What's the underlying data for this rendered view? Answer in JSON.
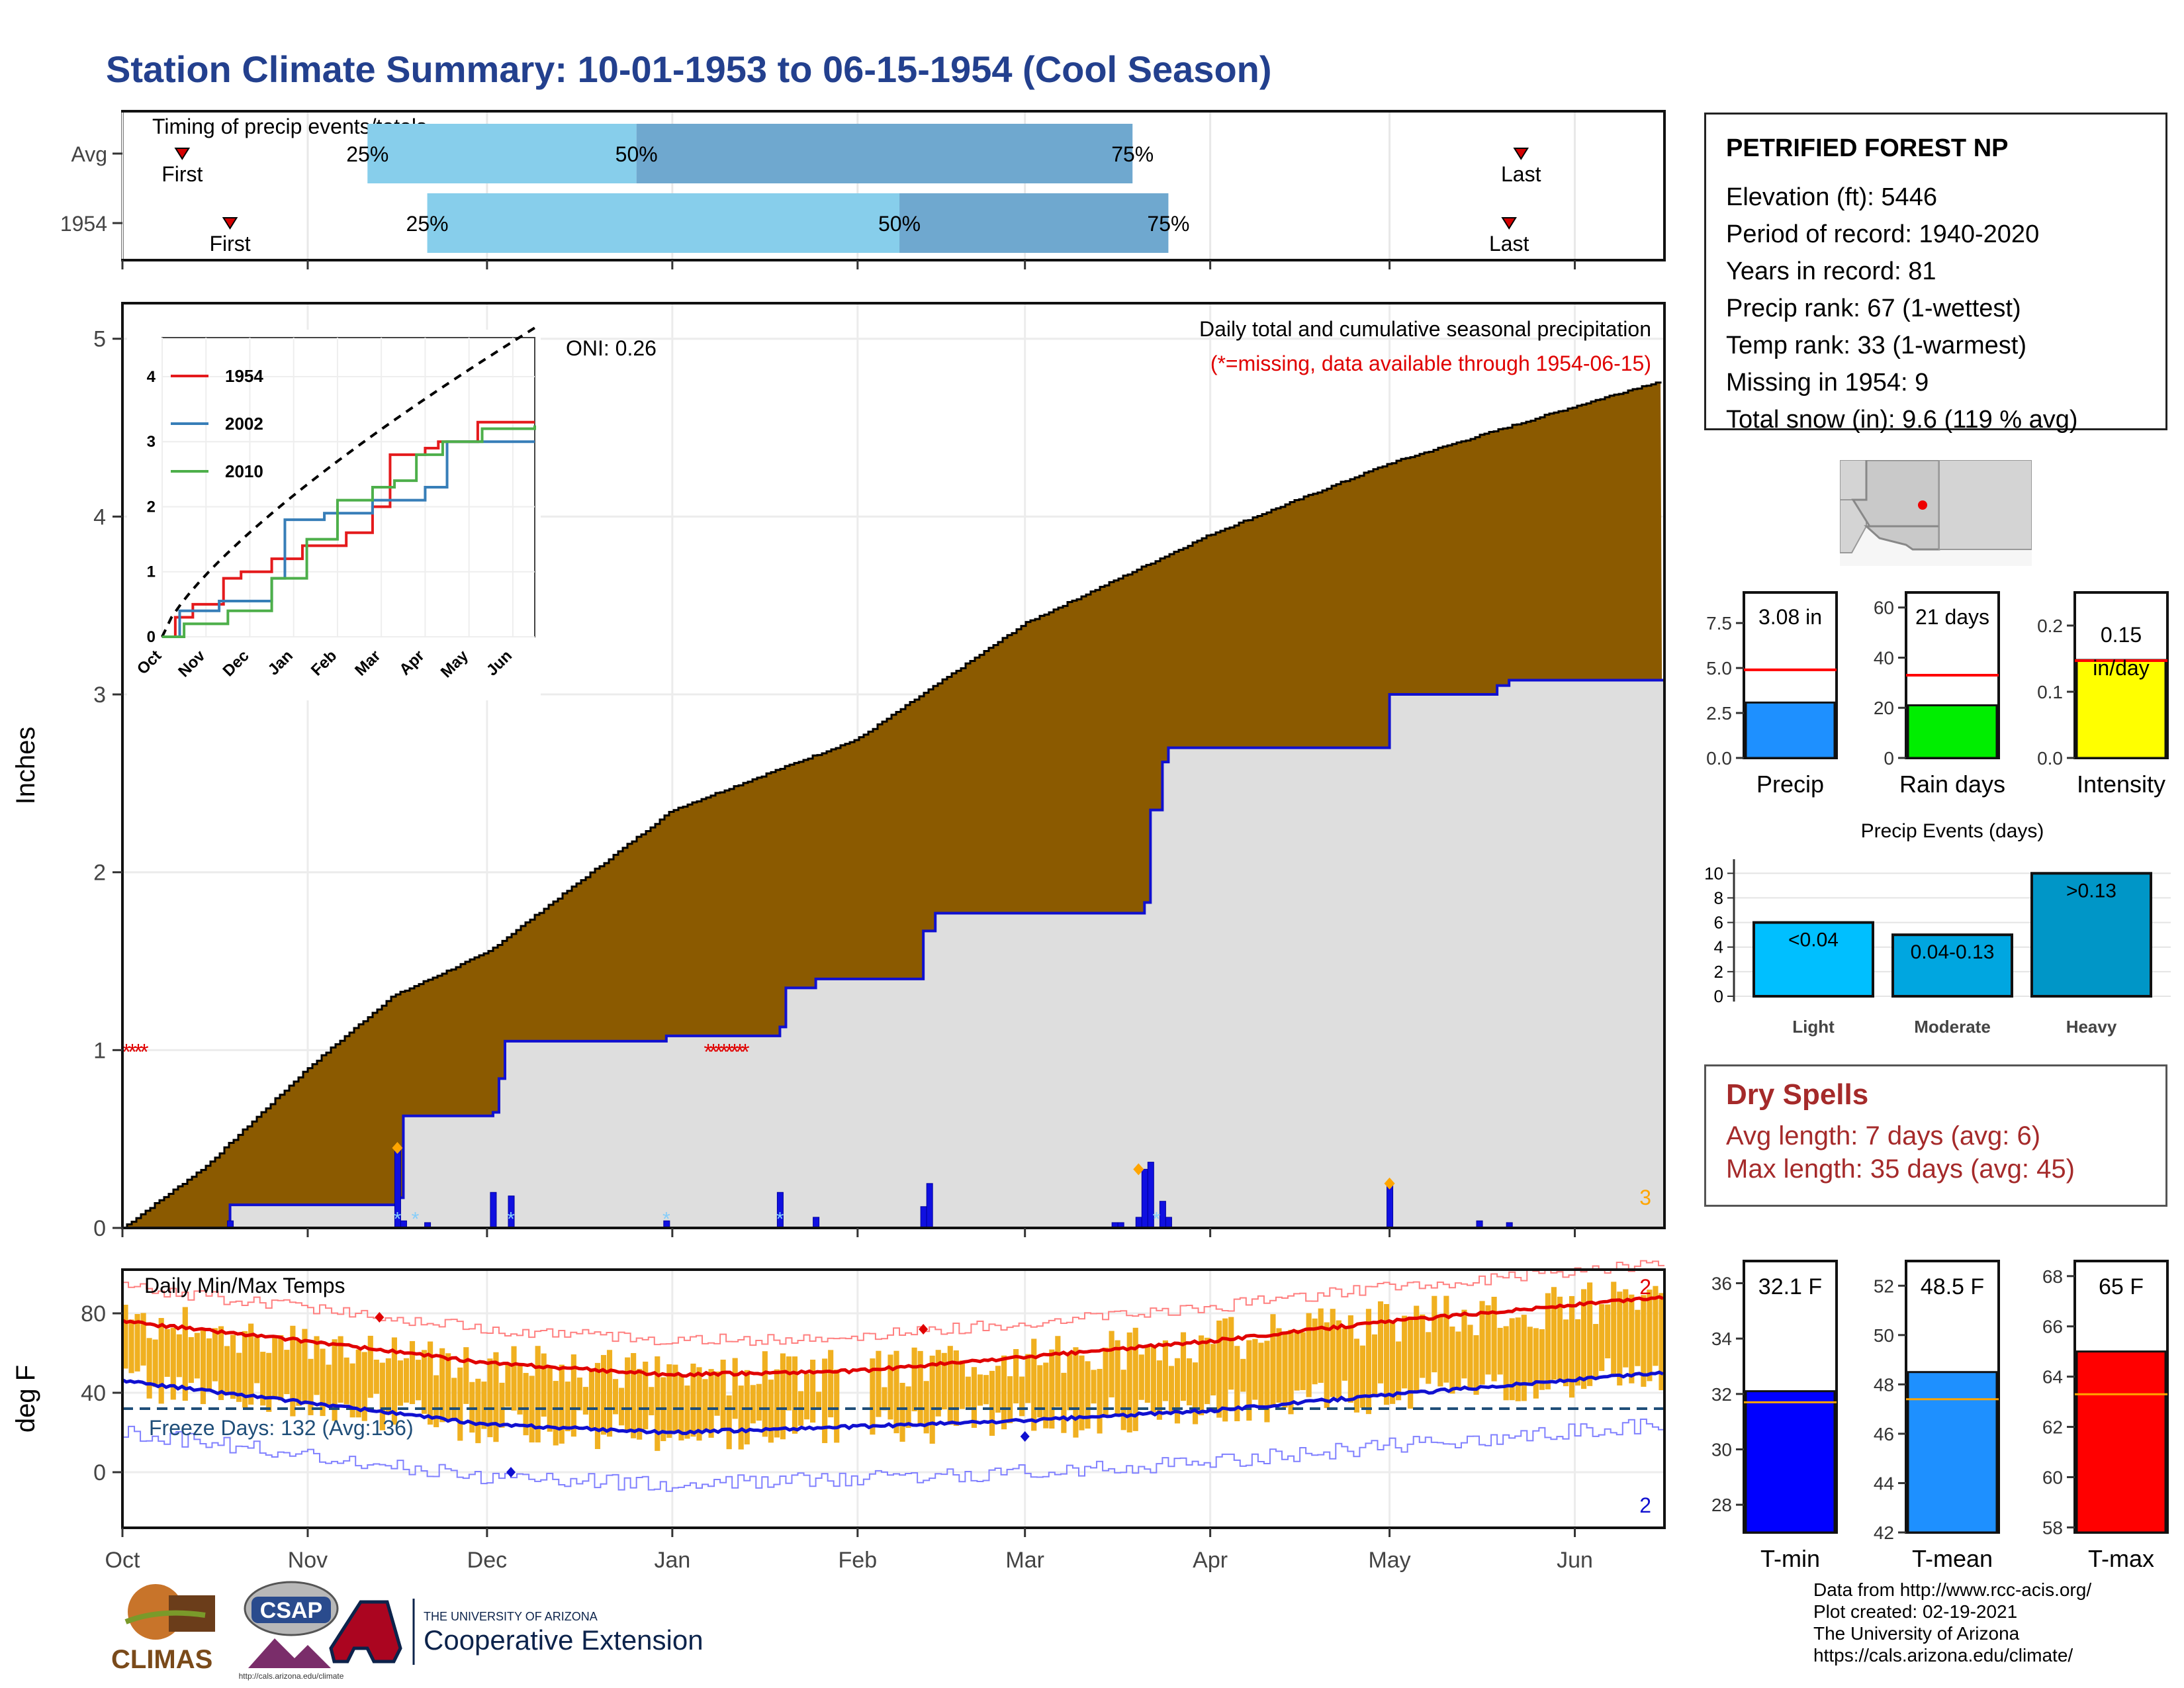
{
  "title": "Station Climate Summary: 10-01-1953 to 06-15-1954 (Cool Season)",
  "timing": {
    "title": "Timing of precip events/totals",
    "rows": [
      {
        "label": "Avg",
        "first": "10-11",
        "p25": "11-11",
        "p50": "12-26",
        "p75": "03-19",
        "last": "05-23"
      },
      {
        "label": "1954",
        "first": "10-19",
        "p25": "11-21",
        "p50": "02-08",
        "p75": "03-25",
        "last": "05-21"
      }
    ],
    "first_label": "First",
    "last_label": "Last",
    "p25_label": "25%",
    "p50_label": "50%",
    "p75_label": "75%",
    "colors": {
      "light": "#87ceeb",
      "dark": "#6fa8cf",
      "marker": "#d40000"
    }
  },
  "months": [
    "Oct",
    "Nov",
    "Dec",
    "Jan",
    "Feb",
    "Mar",
    "Apr",
    "May",
    "Jun"
  ],
  "precip_panel": {
    "ylabel": "Inches",
    "yticks": [
      "0",
      "1",
      "2",
      "3",
      "4",
      "5"
    ],
    "oni": "ONI: 0.26",
    "caption": "Daily total and cumulative seasonal precipitation",
    "missing_note": "(*=missing, data available through 1954-06-15)",
    "corner_count": "3",
    "colors": {
      "cumavg": "#8b5a00",
      "year": "#1010d0",
      "fill": "#dedede",
      "missing": "#e00000",
      "snow": "#87cefa",
      "diamond": "#ffa500"
    }
  },
  "inset": {
    "legend": [
      "1954",
      "2002",
      "2010"
    ],
    "colors": [
      "#e41a1c",
      "#377eb8",
      "#4daf4a"
    ],
    "yticks": [
      "0",
      "1",
      "2",
      "3",
      "4"
    ],
    "months": [
      "Oct",
      "Nov",
      "Dec",
      "Jan",
      "Feb",
      "Mar",
      "Apr",
      "May",
      "Jun"
    ]
  },
  "temp_panel": {
    "title": "Daily Min/Max Temps",
    "ylabel": "deg F",
    "yticks": [
      "0",
      "40",
      "80"
    ],
    "freeze": "Freeze Days: 132 (Avg:136)",
    "max_count": "2",
    "min_count": "2",
    "colors": {
      "bars": "#f0b020",
      "max": "#e00000",
      "min": "#1010d0",
      "freeze": "#1f4e79"
    }
  },
  "info": {
    "station": "PETRIFIED FOREST NP",
    "lines": [
      "Elevation (ft): 5446",
      "Period of record: 1940-2020",
      "Years in record: 81",
      "Precip rank: 67 (1-wettest)",
      "Temp rank: 33 (1-warmest)",
      "Missing in 1954: 9",
      "Total snow (in): 9.6 (119 % avg)"
    ]
  },
  "gauges": [
    {
      "label": "Precip",
      "value_text": "3.08 in",
      "yticks": [
        "0.0",
        "2.5",
        "5.0",
        "7.5"
      ],
      "ymax": 9.2,
      "value": 3.08,
      "avg": 4.9,
      "color": "#1e90ff"
    },
    {
      "label": "Rain days",
      "value_text": "21 days",
      "yticks": [
        "0",
        "20",
        "40",
        "60"
      ],
      "ymax": 66,
      "value": 21,
      "avg": 33,
      "color": "#00ee00"
    },
    {
      "label": "Intensity",
      "value_text": "0.15 in/day",
      "yticks": [
        "0.0",
        "0.1",
        "0.2"
      ],
      "ymax": 0.25,
      "value": 0.148,
      "avg": 0.147,
      "color": "#ffff00"
    }
  ],
  "events": {
    "title": "Precip Events (days)",
    "yticks": [
      "0",
      "2",
      "4",
      "6",
      "8",
      "10"
    ],
    "bars": [
      {
        "cat": "Light",
        "label": "<0.04",
        "value": 6
      },
      {
        "cat": "Moderate",
        "label": "0.04-0.13",
        "value": 5
      },
      {
        "cat": "Heavy",
        "label": ">0.13",
        "value": 10
      }
    ],
    "colors": [
      "#00bfff",
      "#00a6e0",
      "#0096c7"
    ]
  },
  "dry_spells": {
    "title": "Dry Spells",
    "avg": "Avg length: 7 days (avg: 6)",
    "max": "Max length: 35 days (avg: 45)"
  },
  "temp_gauges": [
    {
      "label": "T-min",
      "value_text": "32.1 F",
      "ymin": 27,
      "ymax": 36.8,
      "yticks": [
        "28",
        "30",
        "32",
        "34",
        "36"
      ],
      "value": 32.1,
      "avg": 31.7,
      "color": "#0000ff"
    },
    {
      "label": "T-mean",
      "value_text": "48.5 F",
      "ymin": 42,
      "ymax": 53,
      "yticks": [
        "42",
        "44",
        "46",
        "48",
        "50",
        "52"
      ],
      "value": 48.5,
      "avg": 47.4,
      "color": "#1e90ff"
    },
    {
      "label": "T-max",
      "value_text": "65 F",
      "ymin": 57.8,
      "ymax": 68.6,
      "yticks": [
        "58",
        "60",
        "62",
        "64",
        "66",
        "68"
      ],
      "value": 65,
      "avg": 63.3,
      "color": "#ff0000"
    }
  ],
  "credits": [
    "Data from http://www.rcc-acis.org/",
    "Plot created: 02-19-2021",
    "The University of Arizona",
    "https://cals.arizona.edu/climate/"
  ],
  "logos": {
    "climas": "CLIMAS",
    "csap": "CSAP",
    "csap_url": "http://cals.arizona.edu/climate",
    "ua_small": "THE UNIVERSITY OF ARIZONA",
    "ua_big": "Cooperative Extension"
  },
  "chart_data": [
    {
      "type": "area",
      "title": "Daily total and cumulative seasonal precipitation",
      "ylabel": "Inches",
      "ylim": [
        0,
        5.2
      ],
      "x_range": [
        "1953-10-01",
        "1954-06-15"
      ],
      "series": [
        {
          "name": "cumulative average",
          "x": [
            "1953-10-01",
            "1953-10-15",
            "1953-11-01",
            "1953-11-15",
            "1953-12-01",
            "1954-01-01",
            "1954-02-01",
            "1954-03-01",
            "1954-04-01",
            "1954-05-01",
            "1954-06-01",
            "1954-06-15"
          ],
          "y": [
            0.0,
            0.35,
            0.9,
            1.3,
            1.55,
            2.35,
            2.75,
            3.4,
            3.9,
            4.3,
            4.62,
            4.76
          ]
        },
        {
          "name": "1954",
          "x": [
            "1953-10-01",
            "1953-10-19",
            "1953-11-16",
            "1953-11-17",
            "1953-12-02",
            "1953-12-03",
            "1953-12-04",
            "1953-12-31",
            "1954-01-19",
            "1954-01-20",
            "1954-01-25",
            "1954-02-12",
            "1954-02-14",
            "1954-03-20",
            "1954-03-21",
            "1954-03-22",
            "1954-03-24",
            "1954-03-25",
            "1954-05-01",
            "1954-05-19",
            "1954-05-21",
            "1954-06-15"
          ],
          "y": [
            0.0,
            0.13,
            0.17,
            0.63,
            0.65,
            0.84,
            1.05,
            1.08,
            1.13,
            1.35,
            1.4,
            1.67,
            1.77,
            1.77,
            1.83,
            2.35,
            2.62,
            2.7,
            3.0,
            3.05,
            3.08,
            3.08
          ]
        }
      ]
    },
    {
      "type": "line",
      "title": "Daily Min/Max Temps",
      "ylabel": "deg F",
      "ylim": [
        -28,
        102
      ],
      "series": [
        {
          "name": "avg max",
          "x": [
            "1953-10-01",
            "1953-11-01",
            "1953-12-01",
            "1954-01-01",
            "1954-02-01",
            "1954-03-01",
            "1954-04-01",
            "1954-05-01",
            "1954-06-15"
          ],
          "y": [
            76,
            66,
            55,
            49,
            51,
            58,
            66,
            76,
            88
          ]
        },
        {
          "name": "avg min",
          "x": [
            "1953-10-01",
            "1953-11-01",
            "1953-12-01",
            "1954-01-01",
            "1954-02-01",
            "1954-03-01",
            "1954-04-01",
            "1954-05-01",
            "1954-06-15"
          ],
          "y": [
            46,
            35,
            24,
            20,
            23,
            26,
            31,
            39,
            50
          ]
        }
      ],
      "freeze_line": 32
    }
  ]
}
